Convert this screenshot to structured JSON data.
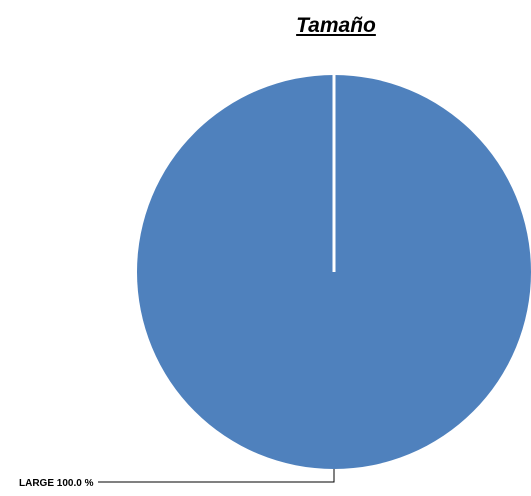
{
  "chart_data": {
    "type": "pie",
    "title": "Tamaño",
    "slices": [
      {
        "label": "LARGE",
        "value": 100.0,
        "percent_label": "100.0 %",
        "color": "#4f81bd"
      }
    ],
    "legend": "none",
    "label_style": "leader-line"
  }
}
